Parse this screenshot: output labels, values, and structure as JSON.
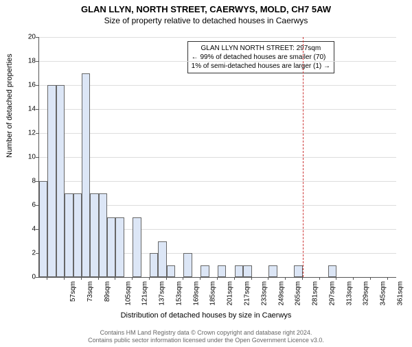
{
  "titles": {
    "main": "GLAN LLYN, NORTH STREET, CAERWYS, MOLD, CH7 5AW",
    "sub": "Size of property relative to detached houses in Caerwys"
  },
  "chart": {
    "type": "histogram",
    "ylabel": "Number of detached properties",
    "xlabel": "Distribution of detached houses by size in Caerwys",
    "ylim": [
      0,
      20
    ],
    "ytick_step": 2,
    "bar_fill": "#dce6f6",
    "bar_border": "#666666",
    "grid_color": "#dddddd",
    "ref_line_color": "#cc3333",
    "ref_value": 297,
    "x_start": 49,
    "bin_width_sqm": 8,
    "bars": [
      8,
      16,
      16,
      7,
      7,
      17,
      7,
      7,
      5,
      5,
      0,
      5,
      0,
      2,
      3,
      1,
      0,
      2,
      0,
      1,
      0,
      1,
      0,
      1,
      1,
      0,
      0,
      1,
      0,
      0,
      1,
      0,
      0,
      0,
      1,
      0,
      0,
      0,
      0,
      0,
      0,
      0
    ],
    "x_label_start": 57,
    "x_label_step": 16,
    "x_label_count": 21,
    "x_label_suffix": "sqm"
  },
  "annotation": {
    "line1": "GLAN LLYN NORTH STREET: 297sqm",
    "line2": "← 99% of detached houses are smaller (70)",
    "line3": "1% of semi-detached houses are larger (1) →"
  },
  "footer": {
    "line1": "Contains HM Land Registry data © Crown copyright and database right 2024.",
    "line2": "Contains public sector information licensed under the Open Government Licence v3.0."
  }
}
